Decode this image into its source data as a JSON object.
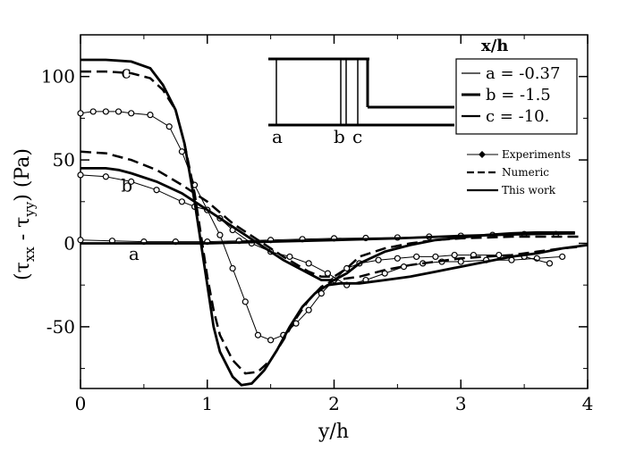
{
  "chart_data": {
    "type": "line",
    "title": "",
    "xlabel": "y/h",
    "ylabel_main": "(τ",
    "ylabel_sub1": "xx",
    "ylabel_mid": " - τ",
    "ylabel_sub2": "yy",
    "ylabel_end": ") (Pa)",
    "xlim": [
      0,
      4
    ],
    "ylim": [
      -87,
      125
    ],
    "xticks": [
      0,
      1,
      2,
      3,
      4
    ],
    "yticks": [
      -50,
      0,
      50,
      100
    ],
    "xtick_labels": [
      "0",
      "1",
      "2",
      "3",
      "4"
    ],
    "ytick_labels": [
      "-50",
      "0",
      "50",
      "100"
    ],
    "grid": false,
    "legend_placement": "top-right",
    "position_legend": {
      "header": "x/h",
      "entries": [
        "a = -0.37",
        "b = -1.5",
        "c = -10."
      ]
    },
    "style_legend": {
      "entries": [
        "Experiments",
        "Numeric",
        "This work"
      ]
    },
    "inset_labels": [
      "a",
      "b",
      "c"
    ],
    "curve_labels": [
      {
        "text": "a",
        "x": 0.38,
        "y": -10
      },
      {
        "text": "b",
        "x": 0.32,
        "y": 31
      },
      {
        "text": "c",
        "x": 0.32,
        "y": 99
      }
    ],
    "series": [
      {
        "group": "experiments",
        "curve": "a",
        "style": "experiment",
        "x": [
          0,
          0.25,
          0.5,
          0.75,
          1.0,
          1.25,
          1.5,
          1.75,
          2.0,
          2.25,
          2.5,
          2.75,
          3.0,
          3.25,
          3.5,
          3.75
        ],
        "y": [
          2,
          1.5,
          1,
          1,
          1,
          1.5,
          2,
          2.5,
          3,
          3.2,
          3.5,
          4,
          4.5,
          5,
          5.5,
          5.5
        ]
      },
      {
        "group": "experiments",
        "curve": "b",
        "style": "experiment",
        "x": [
          0,
          0.2,
          0.4,
          0.6,
          0.8,
          0.9,
          1.0,
          1.1,
          1.2,
          1.35,
          1.5,
          1.65,
          1.8,
          1.95,
          2.1,
          2.25,
          2.4,
          2.55,
          2.7,
          2.85,
          3.0,
          3.2,
          3.4,
          3.6,
          3.8
        ],
        "y": [
          41,
          40,
          37,
          32,
          25,
          22,
          20,
          15,
          8,
          0,
          -5,
          -8,
          -12,
          -18,
          -25,
          -22,
          -18,
          -14,
          -12,
          -11,
          -11,
          -10,
          -10,
          -9,
          -8
        ]
      },
      {
        "group": "experiments",
        "curve": "c",
        "style": "experiment",
        "x": [
          0,
          0.1,
          0.2,
          0.3,
          0.4,
          0.55,
          0.7,
          0.8,
          0.9,
          1.0,
          1.1,
          1.2,
          1.3,
          1.4,
          1.5,
          1.6,
          1.7,
          1.8,
          1.9,
          2.0,
          2.1,
          2.2,
          2.35,
          2.5,
          2.65,
          2.8,
          2.95,
          3.1,
          3.3,
          3.5,
          3.7
        ],
        "y": [
          78,
          79,
          79,
          79,
          78,
          77,
          70,
          55,
          35,
          20,
          5,
          -15,
          -35,
          -55,
          -58,
          -55,
          -48,
          -40,
          -30,
          -22,
          -15,
          -12,
          -10,
          -9,
          -8,
          -8,
          -7,
          -7,
          -7,
          -8,
          -12
        ]
      },
      {
        "group": "numeric",
        "curve": "b",
        "style": "numeric",
        "x": [
          0,
          0.2,
          0.4,
          0.6,
          0.8,
          1.0,
          1.2,
          1.4,
          1.6,
          1.8,
          1.9,
          2.0,
          2.1,
          2.2,
          2.4,
          2.6,
          2.8,
          3.0,
          3.2,
          3.4,
          3.6,
          3.8,
          3.95
        ],
        "y": [
          55,
          54,
          50,
          44,
          35,
          25,
          12,
          2,
          -8,
          -17,
          -20,
          -20,
          -15,
          -8,
          -3,
          0,
          2,
          3,
          3.5,
          4,
          4,
          4,
          4
        ]
      },
      {
        "group": "numeric",
        "curve": "c",
        "style": "numeric",
        "x": [
          0,
          0.2,
          0.4,
          0.55,
          0.65,
          0.75,
          0.82,
          0.9,
          0.95,
          1.0,
          1.05,
          1.1,
          1.2,
          1.3,
          1.4,
          1.5,
          1.6,
          1.7,
          1.8,
          1.9,
          2.0,
          2.2,
          2.4,
          2.6,
          2.8,
          3.0,
          3.2,
          3.4,
          3.6,
          3.8,
          3.95
        ],
        "y": [
          103,
          103,
          102,
          99,
          92,
          80,
          60,
          30,
          5,
          -20,
          -40,
          -55,
          -70,
          -78,
          -77,
          -70,
          -58,
          -45,
          -34,
          -26,
          -22,
          -20,
          -16,
          -13,
          -11,
          -9,
          -8,
          -7,
          -5,
          -3,
          -2
        ]
      },
      {
        "group": "this_work",
        "curve": "a",
        "style": "this_work",
        "x": [
          0,
          0.5,
          1.0,
          1.5,
          2.0,
          2.5,
          3.0,
          3.5,
          3.9
        ],
        "y": [
          0,
          0,
          0,
          1,
          2,
          3,
          4.5,
          5.5,
          6
        ]
      },
      {
        "group": "this_work",
        "curve": "b",
        "style": "this_work",
        "x": [
          0,
          0.2,
          0.3,
          0.4,
          0.6,
          0.8,
          1.0,
          1.2,
          1.4,
          1.6,
          1.8,
          1.9,
          2.0,
          2.1,
          2.2,
          2.4,
          2.6,
          2.8,
          3.0,
          3.2,
          3.4,
          3.6,
          3.8,
          3.9
        ],
        "y": [
          45,
          45,
          44,
          42,
          37,
          30,
          20,
          10,
          0,
          -10,
          -18,
          -22,
          -22,
          -18,
          -12,
          -5,
          -1,
          2,
          3.5,
          5,
          6,
          6.5,
          6.5,
          6.5
        ]
      },
      {
        "group": "this_work",
        "curve": "c",
        "style": "this_work",
        "x": [
          0,
          0.2,
          0.4,
          0.55,
          0.65,
          0.75,
          0.82,
          0.9,
          0.95,
          1.0,
          1.05,
          1.1,
          1.2,
          1.27,
          1.35,
          1.45,
          1.55,
          1.65,
          1.75,
          1.85,
          1.95,
          2.05,
          2.2,
          2.4,
          2.6,
          2.8,
          3.0,
          3.2,
          3.4,
          3.6,
          3.8,
          4.0
        ],
        "y": [
          110,
          110,
          109,
          105,
          95,
          80,
          60,
          25,
          0,
          -25,
          -50,
          -65,
          -80,
          -85,
          -84,
          -76,
          -64,
          -50,
          -38,
          -30,
          -25,
          -24,
          -24,
          -22,
          -20,
          -17,
          -14,
          -11,
          -8,
          -6,
          -3,
          -1
        ]
      }
    ]
  }
}
